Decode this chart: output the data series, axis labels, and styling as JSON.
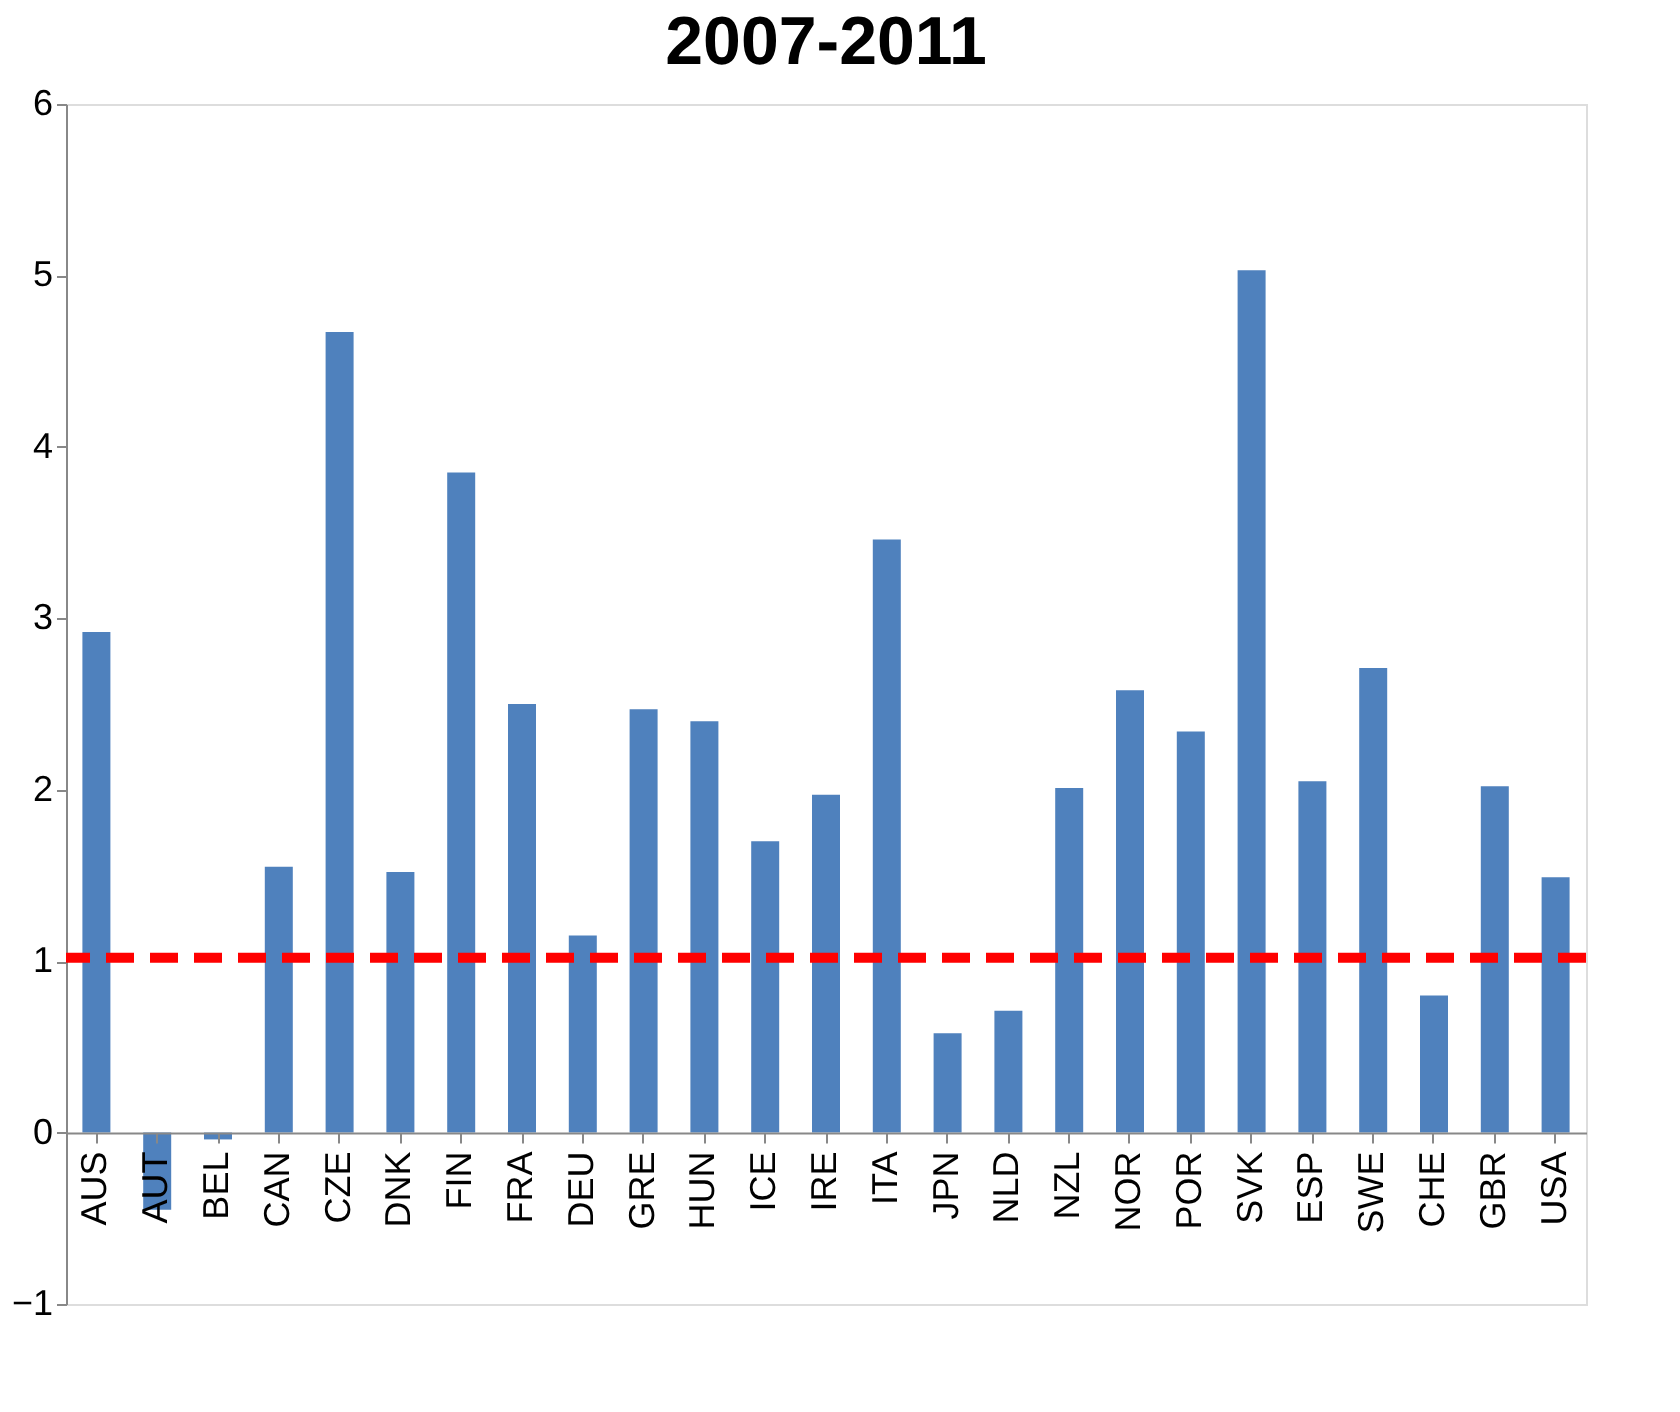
{
  "chart_data": {
    "type": "bar",
    "title": "2007-2011",
    "categories": [
      "AUS",
      "AUT",
      "BEL",
      "CAN",
      "CZE",
      "DNK",
      "FIN",
      "FRA",
      "DEU",
      "GRE",
      "HUN",
      "ICE",
      "IRE",
      "ITA",
      "JPN",
      "NLD",
      "NZL",
      "NOR",
      "POR",
      "SVK",
      "ESP",
      "SWE",
      "CHE",
      "GBR",
      "USA"
    ],
    "values": [
      2.92,
      -0.45,
      -0.04,
      1.55,
      4.67,
      1.52,
      3.85,
      2.5,
      1.15,
      2.47,
      2.4,
      1.7,
      1.97,
      3.46,
      0.58,
      0.71,
      2.01,
      2.58,
      2.34,
      5.03,
      2.05,
      2.71,
      0.8,
      2.02,
      1.49
    ],
    "color": "#4f81bd",
    "ylim": [
      -1,
      6
    ],
    "yticks": [
      -1,
      0,
      1,
      2,
      3,
      4,
      5,
      6
    ],
    "grid": false,
    "ref_lines": [
      {
        "axis": "y",
        "value": 1.02,
        "color": "#ff0000",
        "line_style": "dashed"
      }
    ]
  }
}
